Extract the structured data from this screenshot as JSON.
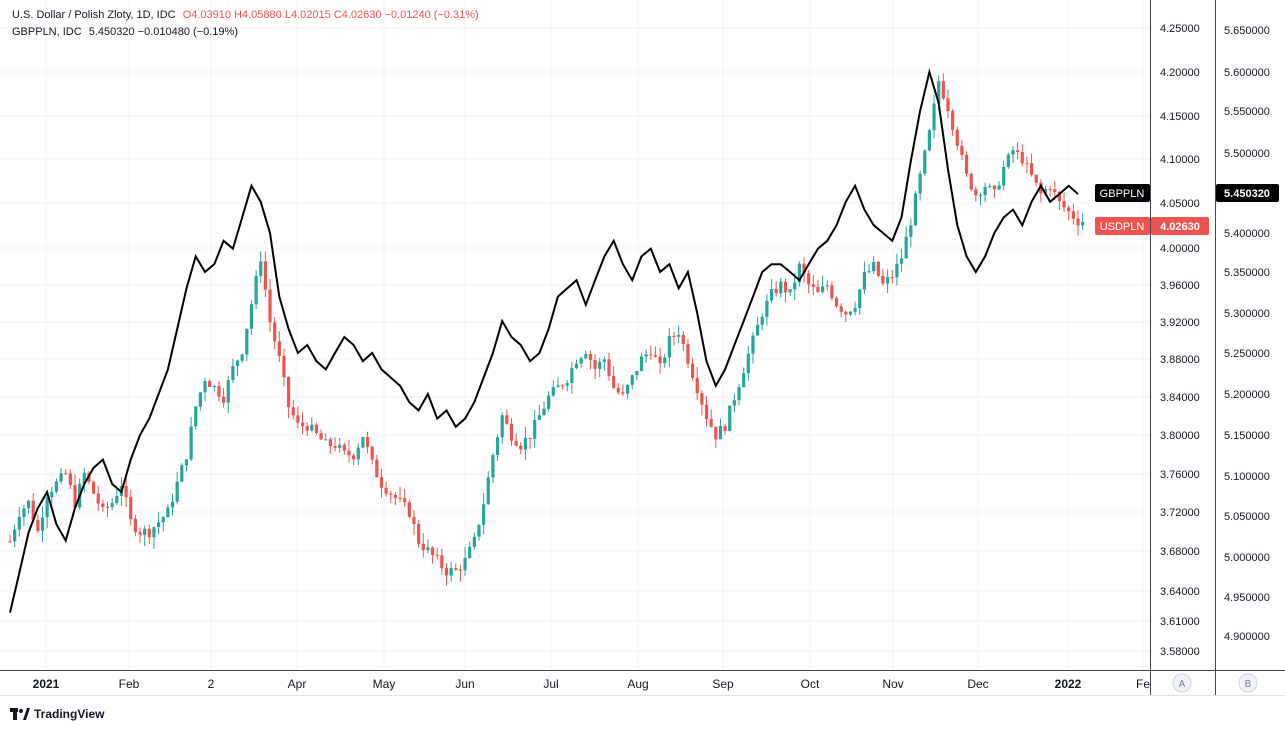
{
  "legend": {
    "usdpln_name": "U.S. Dollar / Polish Zloty, 1D, IDC",
    "usdpln_ohlc": "O4.03910 H4.05880 L4.02015 C4.02630 −0.01240 (−0.31%)",
    "gbppln_name": "GBPPLN, IDC",
    "gbppln_val": "5.450320 −0.010480 (−0.19%)"
  },
  "badges": {
    "gbppln_label": "GBPPLN",
    "gbppln_price": "5.450320",
    "usdpln_label": "USDPLN",
    "usdpln_price": "4.02630"
  },
  "scale_buttons": {
    "a": "A",
    "b": "B"
  },
  "brand": "TradingView",
  "colors": {
    "up": "#26a69a",
    "down": "#ef5350",
    "line": "#000000",
    "grid": "#f0f3fa"
  },
  "chart_data": {
    "type": "line",
    "x_ticks": [
      "2021",
      "Feb",
      "2",
      "Apr",
      "May",
      "Jun",
      "Jul",
      "Aug",
      "Sep",
      "Oct",
      "Nov",
      "Dec",
      "2022",
      "Fe"
    ],
    "y_axis_A": [
      "4.25000",
      "4.20000",
      "4.15000",
      "4.10000",
      "4.05000",
      "4.00000",
      "3.96000",
      "3.92000",
      "3.88000",
      "3.84000",
      "3.80000",
      "3.76000",
      "3.72000",
      "3.68000",
      "3.64000",
      "3.61000",
      "3.58000"
    ],
    "y_axis_B": [
      "5.650000",
      "5.600000",
      "5.550000",
      "5.500000",
      "5.450000",
      "5.400000",
      "5.350000",
      "5.300000",
      "5.250000",
      "5.200000",
      "5.150000",
      "5.100000",
      "5.050000",
      "5.000000",
      "4.950000",
      "4.900000"
    ],
    "series": [
      {
        "name": "USDPLN",
        "style": "candlestick",
        "approx_closes": [
          3.69,
          3.72,
          3.73,
          3.7,
          3.74,
          3.75,
          3.76,
          3.73,
          3.76,
          3.74,
          3.72,
          3.73,
          3.75,
          3.71,
          3.7,
          3.7,
          3.71,
          3.72,
          3.75,
          3.78,
          3.83,
          3.86,
          3.85,
          3.84,
          3.87,
          3.89,
          3.94,
          3.99,
          3.92,
          3.88,
          3.83,
          3.81,
          3.81,
          3.8,
          3.79,
          3.79,
          3.78,
          3.78,
          3.8,
          3.77,
          3.75,
          3.74,
          3.73,
          3.72,
          3.69,
          3.68,
          3.67,
          3.66,
          3.66,
          3.67,
          3.69,
          3.73,
          3.78,
          3.82,
          3.8,
          3.79,
          3.8,
          3.82,
          3.84,
          3.85,
          3.86,
          3.88,
          3.89,
          3.87,
          3.88,
          3.85,
          3.84,
          3.86,
          3.88,
          3.89,
          3.87,
          3.9,
          3.91,
          3.88,
          3.85,
          3.82,
          3.8,
          3.81,
          3.84,
          3.87,
          3.9,
          3.93,
          3.95,
          3.96,
          3.95,
          3.98,
          3.96,
          3.95,
          3.96,
          3.94,
          3.93,
          3.94,
          3.97,
          3.98,
          3.96,
          3.97,
          3.99,
          4.03,
          4.08,
          4.13,
          4.19,
          4.16,
          4.12,
          4.08,
          4.06,
          4.07,
          4.06,
          4.09,
          4.11,
          4.1,
          4.08,
          4.06,
          4.07,
          4.05,
          4.04,
          4.03
        ]
      },
      {
        "name": "GBPPLN",
        "style": "line",
        "approx_values": [
          4.93,
          4.98,
          5.03,
          5.06,
          5.08,
          5.04,
          5.02,
          5.06,
          5.09,
          5.11,
          5.12,
          5.09,
          5.08,
          5.12,
          5.15,
          5.17,
          5.2,
          5.23,
          5.28,
          5.33,
          5.37,
          5.35,
          5.36,
          5.39,
          5.38,
          5.42,
          5.46,
          5.44,
          5.4,
          5.32,
          5.28,
          5.25,
          5.26,
          5.24,
          5.23,
          5.25,
          5.27,
          5.26,
          5.24,
          5.25,
          5.23,
          5.22,
          5.21,
          5.19,
          5.18,
          5.2,
          5.17,
          5.18,
          5.16,
          5.17,
          5.19,
          5.22,
          5.25,
          5.29,
          5.27,
          5.26,
          5.24,
          5.25,
          5.28,
          5.32,
          5.33,
          5.34,
          5.31,
          5.34,
          5.37,
          5.39,
          5.36,
          5.34,
          5.37,
          5.38,
          5.35,
          5.36,
          5.33,
          5.35,
          5.3,
          5.24,
          5.21,
          5.23,
          5.26,
          5.29,
          5.32,
          5.35,
          5.36,
          5.36,
          5.35,
          5.34,
          5.36,
          5.38,
          5.39,
          5.41,
          5.44,
          5.46,
          5.43,
          5.41,
          5.4,
          5.39,
          5.42,
          5.49,
          5.55,
          5.6,
          5.56,
          5.48,
          5.41,
          5.37,
          5.35,
          5.37,
          5.4,
          5.42,
          5.43,
          5.41,
          5.44,
          5.46,
          5.44,
          5.45,
          5.46,
          5.45
        ]
      }
    ]
  }
}
